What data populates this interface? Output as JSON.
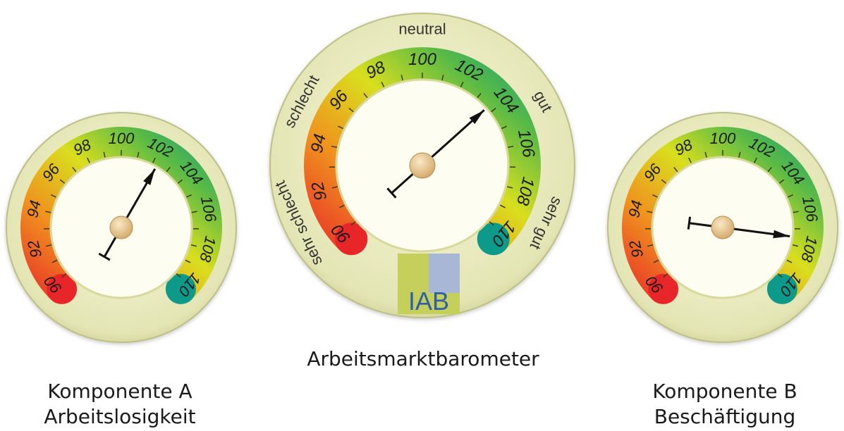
{
  "gauges": [
    {
      "id": "left",
      "ticks": [
        "90",
        "92",
        "94",
        "96",
        "98",
        "100",
        "102",
        "104",
        "106",
        "108",
        "110"
      ],
      "value": 102.3,
      "caption": [
        "Komponente A",
        "Arbeitslosigkeit"
      ]
    },
    {
      "id": "center",
      "ticks": [
        "90",
        "92",
        "94",
        "96",
        "98",
        "100",
        "102",
        "104",
        "106",
        "108",
        "110"
      ],
      "value": 103.7,
      "zone_labels": [
        "sehr schlecht",
        "schlecht",
        "neutral",
        "gut",
        "sehr gut"
      ],
      "caption": [
        "Arbeitsmarktbarometer"
      ],
      "logo_text": "IAB"
    },
    {
      "id": "right",
      "ticks": [
        "90",
        "92",
        "94",
        "96",
        "98",
        "100",
        "102",
        "104",
        "106",
        "108",
        "110"
      ],
      "value": 107.5,
      "caption": [
        "Komponente B",
        "Beschäftigung"
      ]
    }
  ],
  "colors": {
    "red": "#e8262a",
    "orange": "#f0921e",
    "yellow": "#d9de1e",
    "green": "#3aad4a",
    "teal": "#0e9a8a",
    "bezel": "#e6e7b8",
    "face": "#fdfdf0",
    "needle": "#111111",
    "hub": "#e7c48c"
  }
}
